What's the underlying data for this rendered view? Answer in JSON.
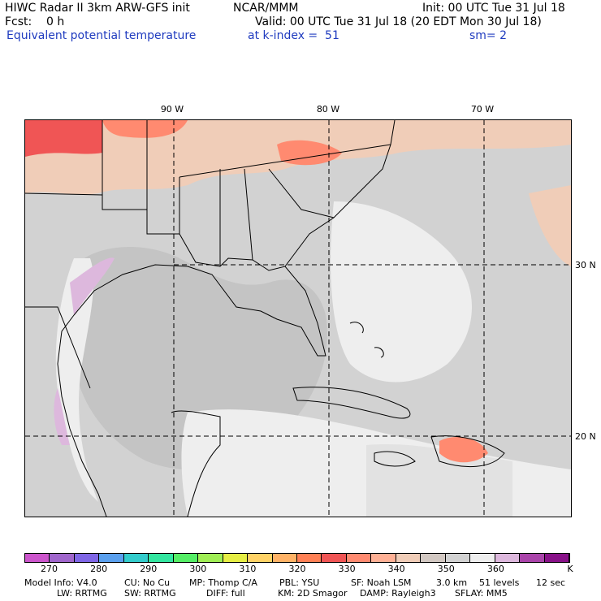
{
  "header": {
    "title": "HIWC Radar II 3km ARW-GFS init",
    "org": "NCAR/MMM",
    "init": "Init: 00 UTC Tue 31 Jul 18",
    "fcst": "Fcst:    0 h",
    "valid": "Valid: 00 UTC Tue 31 Jul 18 (20 EDT Mon 30 Jul 18)",
    "field": "Equivalent potential temperature",
    "level": "at k-index =  51",
    "smooth": "sm= 2"
  },
  "map": {
    "lon_labels": [
      "90 W",
      "80 W",
      "70 W"
    ],
    "lat_labels": [
      "30 N",
      "20 N"
    ]
  },
  "colorbar": {
    "colors": [
      "#cc55cc",
      "#a066cc",
      "#7f66e6",
      "#5aa0ee",
      "#33cccc",
      "#33e6a0",
      "#55ee66",
      "#a0ee55",
      "#e6ee44",
      "#ffd266",
      "#ffb266",
      "#ff8055",
      "#f05555",
      "#ff8a70",
      "#ffb095",
      "#f0cdb8",
      "#d2c8c2",
      "#d2d2d2",
      "#eeeeee",
      "#ddb8dd",
      "#aa44aa",
      "#881188"
    ],
    "tick_labels": [
      "270",
      "280",
      "290",
      "300",
      "310",
      "320",
      "330",
      "340",
      "350",
      "360"
    ],
    "unit": "K"
  },
  "footer": {
    "line1": [
      "Model Info: V4.0",
      "CU: No Cu",
      "MP: Thomp C/A",
      "PBL: YSU",
      "SF: Noah LSM",
      "3.0 km",
      "51 levels",
      "12 sec"
    ],
    "line2": [
      "LW: RRTMG",
      "SW: RRTMG",
      "DIFF: full",
      "KM: 2D Smagor",
      "DAMP: Rayleigh3",
      "SFLAY: MM5"
    ]
  }
}
